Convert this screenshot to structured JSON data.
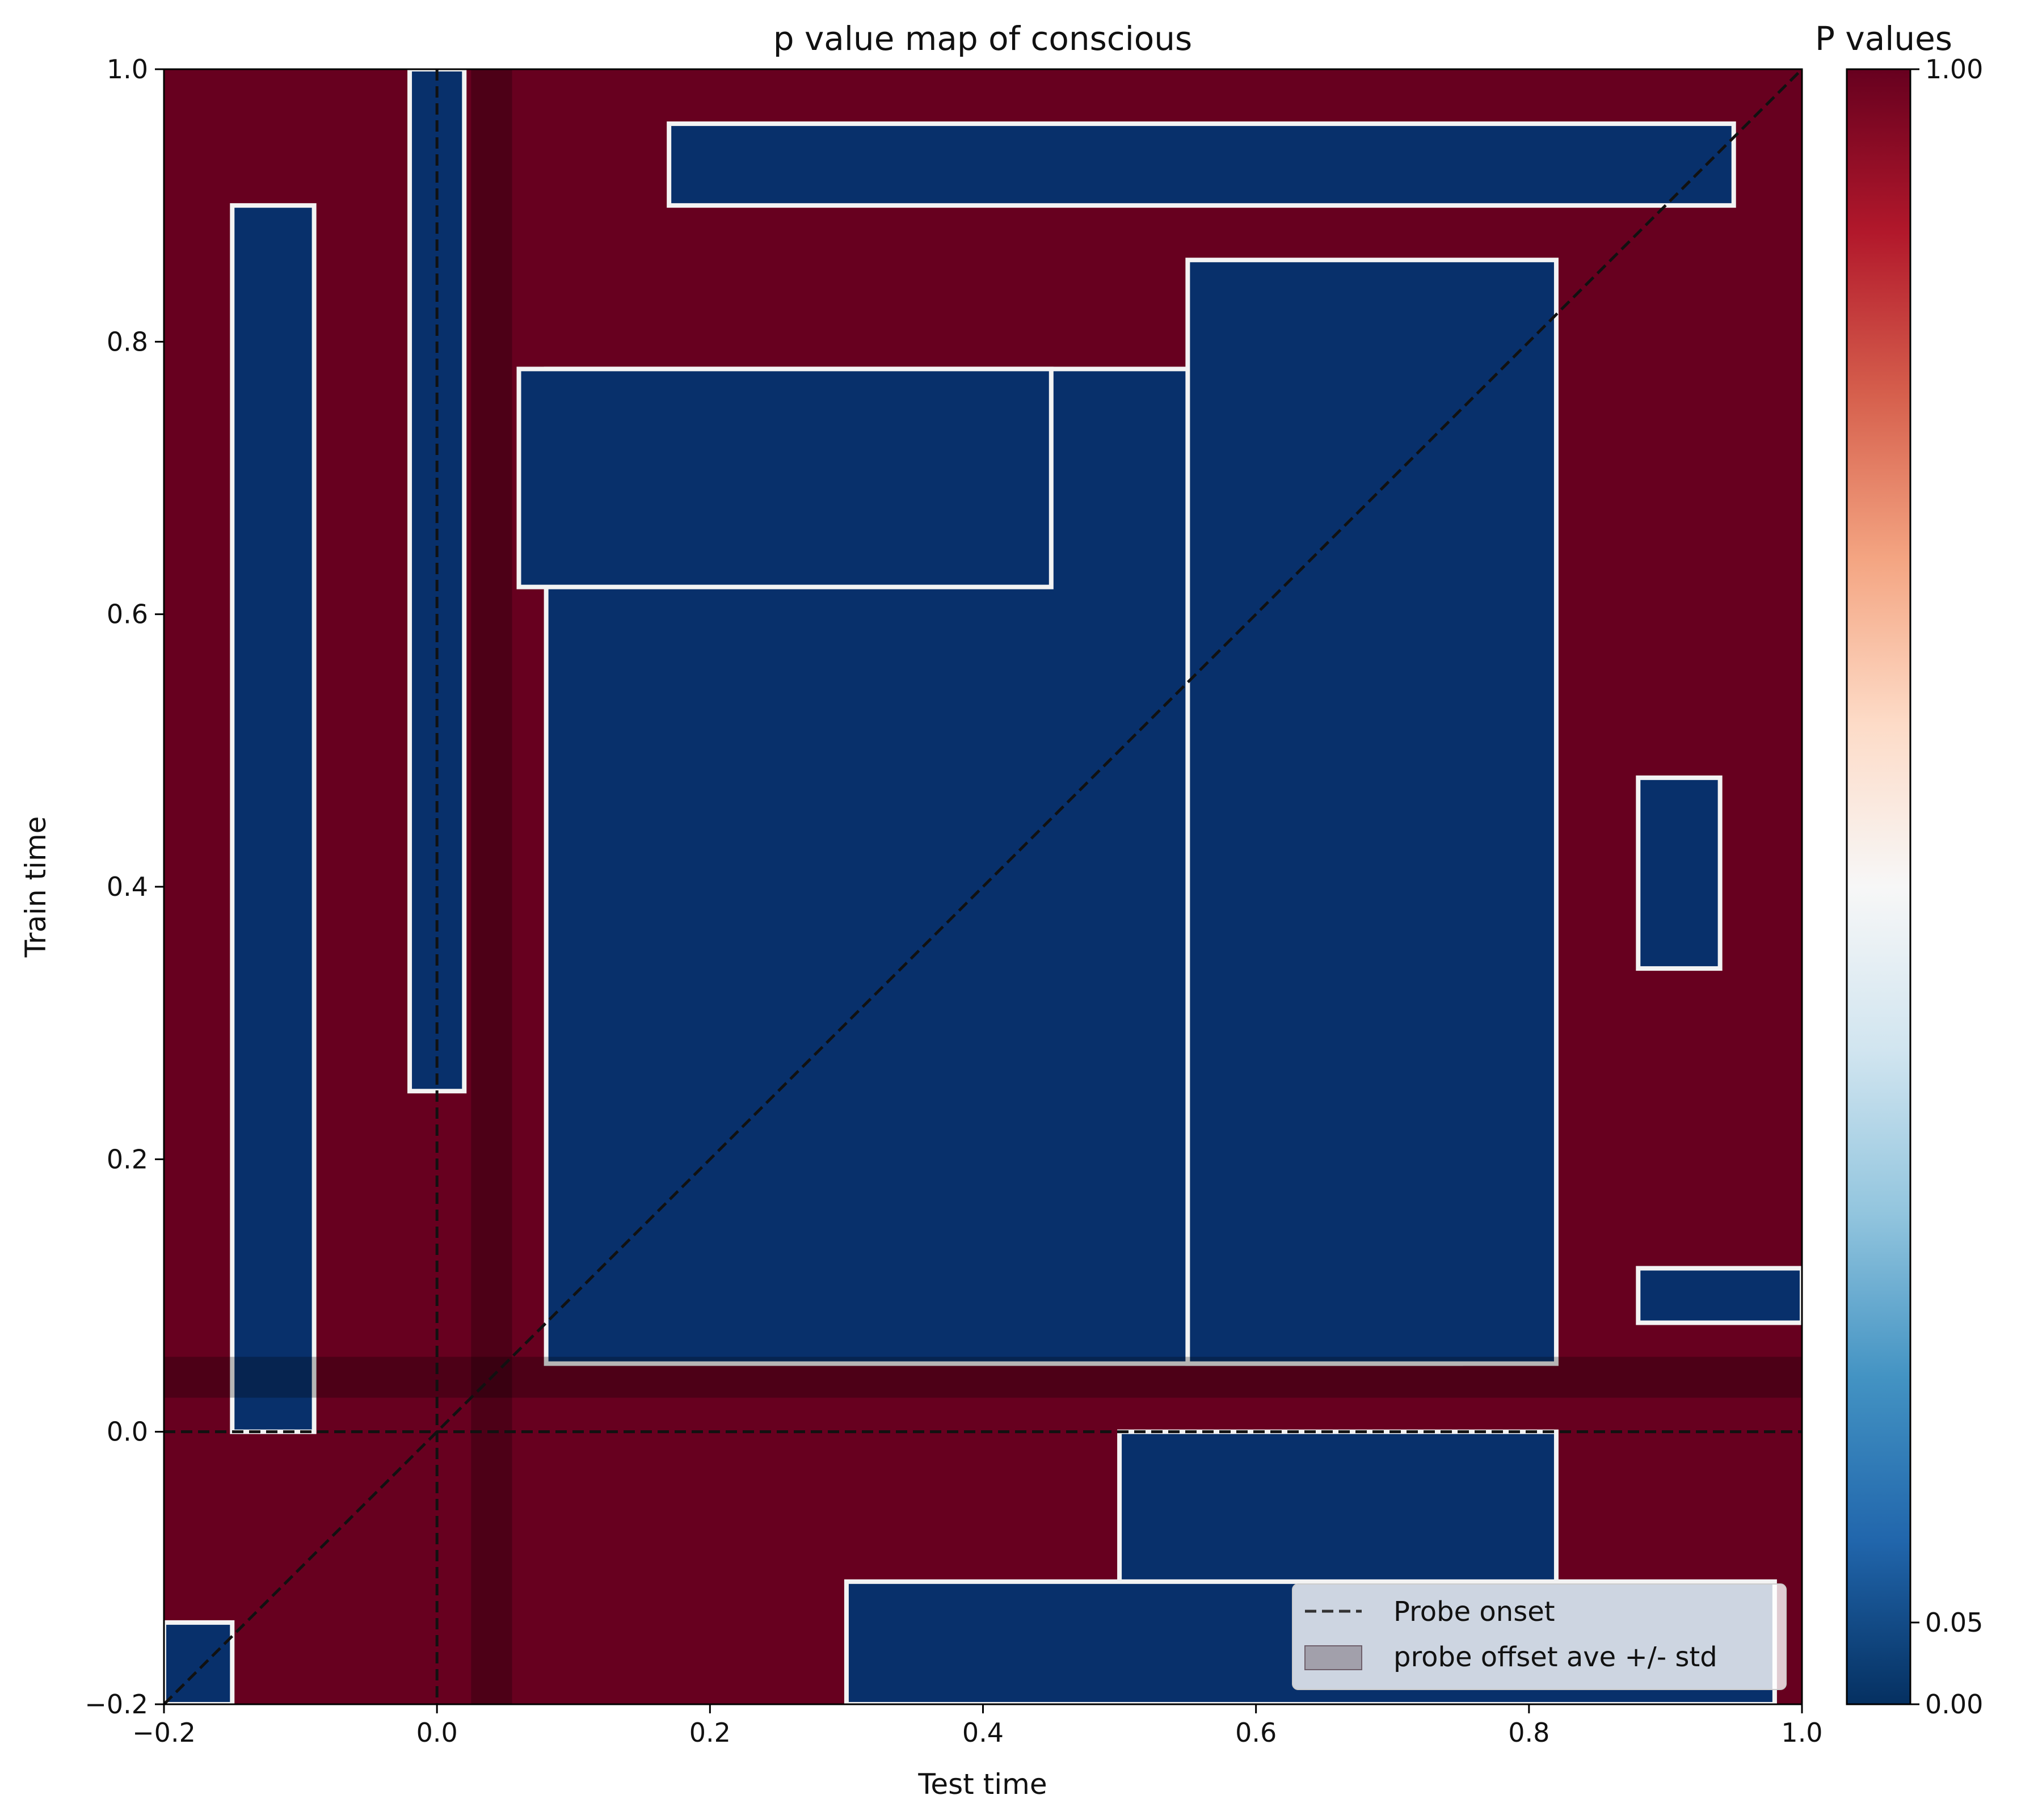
{
  "chart_data": {
    "type": "heatmap",
    "title": "p value map of conscious",
    "xlabel": "Test time",
    "ylabel": "Train time",
    "xlim": [
      -0.2,
      1.0
    ],
    "ylim": [
      -0.2,
      1.0
    ],
    "xticks": [
      {
        "value": -0.2,
        "label": "−0.2"
      },
      {
        "value": 0.0,
        "label": "0.0"
      },
      {
        "value": 0.2,
        "label": "0.2"
      },
      {
        "value": 0.4,
        "label": "0.4"
      },
      {
        "value": 0.6,
        "label": "0.6"
      },
      {
        "value": 0.8,
        "label": "0.8"
      },
      {
        "value": 1.0,
        "label": "1.0"
      }
    ],
    "yticks": [
      {
        "value": -0.2,
        "label": "−0.2"
      },
      {
        "value": 0.0,
        "label": "0.0"
      },
      {
        "value": 0.2,
        "label": "0.2"
      },
      {
        "value": 0.4,
        "label": "0.4"
      },
      {
        "value": 0.6,
        "label": "0.6"
      },
      {
        "value": 0.8,
        "label": "0.8"
      },
      {
        "value": 1.0,
        "label": "1.0"
      }
    ],
    "colorbar": {
      "title": "P values",
      "colormap": "RdBu_r",
      "range": [
        0.0,
        1.0
      ],
      "ticks": [
        {
          "value": 0.0,
          "label": "0.00"
        },
        {
          "value": 0.05,
          "label": "0.05"
        },
        {
          "value": 1.0,
          "label": "1.00"
        }
      ],
      "colors": [
        "#053061",
        "#2166ac",
        "#4393c3",
        "#92c5de",
        "#d1e5f0",
        "#f7f7f7",
        "#fddbc7",
        "#f4a582",
        "#d6604d",
        "#b2182b",
        "#67001f"
      ]
    },
    "significant_color": "#08306b",
    "nonsignificant_color": "#67001f",
    "significant_regions": [
      {
        "test_time": [
          0.08,
          0.75
        ],
        "train_time": [
          0.05,
          0.78
        ]
      },
      {
        "test_time": [
          0.55,
          0.82
        ],
        "train_time": [
          0.05,
          0.86
        ]
      },
      {
        "test_time": [
          0.06,
          0.45
        ],
        "train_time": [
          0.62,
          0.78
        ]
      },
      {
        "test_time": [
          -0.15,
          -0.09
        ],
        "train_time": [
          0.0,
          0.9
        ]
      },
      {
        "test_time": [
          -0.02,
          0.02
        ],
        "train_time": [
          0.25,
          1.0
        ]
      },
      {
        "test_time": [
          0.17,
          0.95
        ],
        "train_time": [
          0.9,
          0.96
        ]
      },
      {
        "test_time": [
          0.5,
          0.82
        ],
        "train_time": [
          -0.12,
          0.0
        ]
      },
      {
        "test_time": [
          0.3,
          0.98
        ],
        "train_time": [
          -0.2,
          -0.11
        ]
      },
      {
        "test_time": [
          -0.2,
          -0.15
        ],
        "train_time": [
          -0.2,
          -0.14
        ]
      },
      {
        "test_time": [
          0.88,
          1.0
        ],
        "train_time": [
          0.08,
          0.12
        ]
      },
      {
        "test_time": [
          0.88,
          0.94
        ],
        "train_time": [
          0.34,
          0.48
        ]
      }
    ],
    "reference_lines": [
      {
        "name": "Probe onset",
        "orientation": "vertical",
        "value": 0.0
      },
      {
        "name": "Probe onset",
        "orientation": "horizontal",
        "value": 0.0
      },
      {
        "name": "diagonal",
        "from": [
          -0.2,
          -0.2
        ],
        "to": [
          1.0,
          1.0
        ]
      }
    ],
    "shaded_bands": [
      {
        "orientation": "vertical",
        "range": [
          0.025,
          0.055
        ]
      },
      {
        "orientation": "horizontal",
        "range": [
          0.025,
          0.055
        ]
      }
    ],
    "legend": {
      "position": "lower-right",
      "entries": [
        {
          "label": "Probe onset",
          "style": "dashed-line"
        },
        {
          "label": "probe offset ave +/- std",
          "style": "shaded-patch"
        }
      ]
    }
  }
}
